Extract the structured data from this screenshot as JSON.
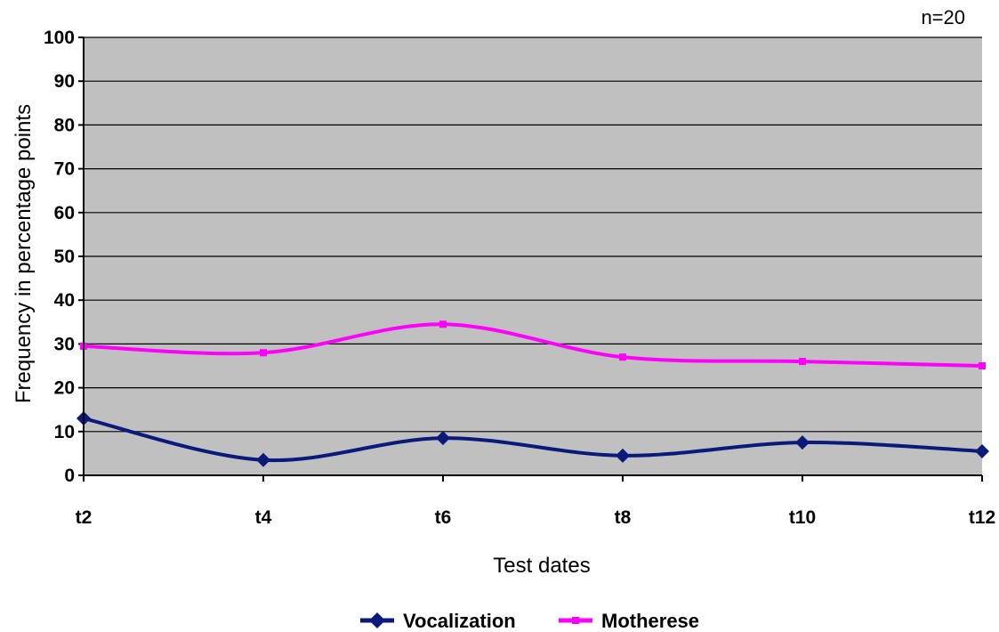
{
  "annotation": "n=20",
  "chart_data": {
    "type": "line",
    "xlabel": "Test dates",
    "ylabel": "Frequency in percentage points",
    "ylim": [
      0,
      100
    ],
    "yticks": [
      0,
      10,
      20,
      30,
      40,
      50,
      60,
      70,
      80,
      90,
      100
    ],
    "categories": [
      "t2",
      "t4",
      "t6",
      "t8",
      "t10",
      "t12"
    ],
    "grid": "horizontal",
    "plot_background": "#c0c0c0",
    "legend_position": "bottom",
    "series": [
      {
        "name": "Vocalization",
        "color": "#0a1a7a",
        "marker": "diamond",
        "values": [
          13,
          3.5,
          8.5,
          4.5,
          7.5,
          5.5
        ]
      },
      {
        "name": "Motherese",
        "color": "#ff00ff",
        "marker": "square",
        "values": [
          29.5,
          28,
          34.5,
          27,
          26,
          25
        ]
      }
    ]
  }
}
